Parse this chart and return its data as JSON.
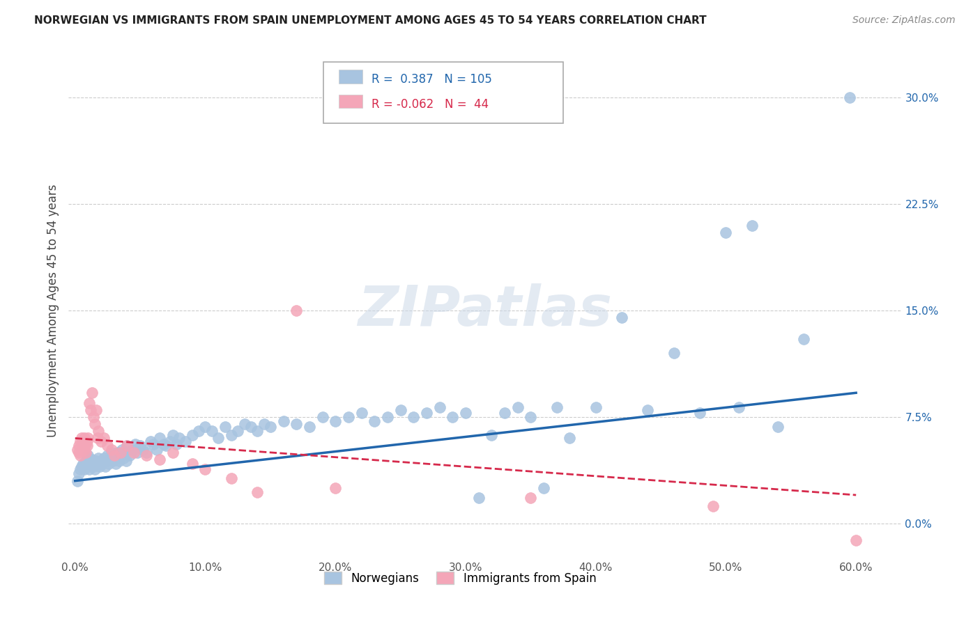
{
  "title": "NORWEGIAN VS IMMIGRANTS FROM SPAIN UNEMPLOYMENT AMONG AGES 45 TO 54 YEARS CORRELATION CHART",
  "source": "Source: ZipAtlas.com",
  "ylabel": "Unemployment Among Ages 45 to 54 years",
  "xlabel_ticks": [
    "0.0%",
    "10.0%",
    "20.0%",
    "30.0%",
    "40.0%",
    "50.0%",
    "60.0%"
  ],
  "xlabel_vals": [
    0.0,
    0.1,
    0.2,
    0.3,
    0.4,
    0.5,
    0.6
  ],
  "ylabel_ticks": [
    "0.0%",
    "7.5%",
    "15.0%",
    "22.5%",
    "30.0%"
  ],
  "ylabel_vals": [
    0.0,
    0.075,
    0.15,
    0.225,
    0.3
  ],
  "xlim": [
    -0.005,
    0.635
  ],
  "ylim": [
    -0.025,
    0.325
  ],
  "r_norwegian": 0.387,
  "n_norwegian": 105,
  "r_spain": -0.062,
  "n_spain": 44,
  "norwegian_color": "#a8c4e0",
  "norway_line_color": "#2166ac",
  "spain_color": "#f4a6b8",
  "spain_line_color": "#d6294b",
  "legend_labels": [
    "Norwegians",
    "Immigrants from Spain"
  ],
  "norwegian_x": [
    0.002,
    0.003,
    0.004,
    0.005,
    0.006,
    0.007,
    0.008,
    0.009,
    0.01,
    0.01,
    0.011,
    0.012,
    0.013,
    0.014,
    0.015,
    0.016,
    0.017,
    0.018,
    0.019,
    0.02,
    0.021,
    0.022,
    0.023,
    0.024,
    0.025,
    0.026,
    0.027,
    0.028,
    0.029,
    0.03,
    0.031,
    0.032,
    0.033,
    0.034,
    0.035,
    0.036,
    0.037,
    0.038,
    0.039,
    0.04,
    0.042,
    0.044,
    0.046,
    0.048,
    0.05,
    0.052,
    0.055,
    0.058,
    0.06,
    0.063,
    0.065,
    0.068,
    0.07,
    0.073,
    0.075,
    0.078,
    0.08,
    0.085,
    0.09,
    0.095,
    0.1,
    0.105,
    0.11,
    0.115,
    0.12,
    0.125,
    0.13,
    0.135,
    0.14,
    0.145,
    0.15,
    0.16,
    0.17,
    0.18,
    0.19,
    0.2,
    0.21,
    0.22,
    0.23,
    0.24,
    0.25,
    0.26,
    0.27,
    0.28,
    0.29,
    0.3,
    0.31,
    0.32,
    0.33,
    0.34,
    0.35,
    0.36,
    0.37,
    0.38,
    0.4,
    0.42,
    0.44,
    0.46,
    0.48,
    0.5,
    0.51,
    0.52,
    0.54,
    0.56,
    0.595
  ],
  "norwegian_y": [
    0.03,
    0.035,
    0.038,
    0.04,
    0.042,
    0.038,
    0.044,
    0.046,
    0.042,
    0.048,
    0.038,
    0.042,
    0.045,
    0.04,
    0.038,
    0.044,
    0.042,
    0.046,
    0.04,
    0.044,
    0.042,
    0.046,
    0.04,
    0.044,
    0.048,
    0.042,
    0.046,
    0.05,
    0.044,
    0.048,
    0.042,
    0.046,
    0.05,
    0.044,
    0.048,
    0.052,
    0.046,
    0.05,
    0.044,
    0.055,
    0.048,
    0.052,
    0.056,
    0.05,
    0.055,
    0.052,
    0.05,
    0.058,
    0.056,
    0.052,
    0.06,
    0.056,
    0.055,
    0.058,
    0.062,
    0.056,
    0.06,
    0.058,
    0.062,
    0.065,
    0.068,
    0.065,
    0.06,
    0.068,
    0.062,
    0.065,
    0.07,
    0.068,
    0.065,
    0.07,
    0.068,
    0.072,
    0.07,
    0.068,
    0.075,
    0.072,
    0.075,
    0.078,
    0.072,
    0.075,
    0.08,
    0.075,
    0.078,
    0.082,
    0.075,
    0.078,
    0.018,
    0.062,
    0.078,
    0.082,
    0.075,
    0.025,
    0.082,
    0.06,
    0.082,
    0.145,
    0.08,
    0.12,
    0.078,
    0.205,
    0.082,
    0.21,
    0.068,
    0.13,
    0.3
  ],
  "spain_x": [
    0.002,
    0.003,
    0.003,
    0.004,
    0.004,
    0.005,
    0.005,
    0.006,
    0.006,
    0.007,
    0.007,
    0.008,
    0.008,
    0.009,
    0.009,
    0.01,
    0.011,
    0.012,
    0.013,
    0.014,
    0.015,
    0.016,
    0.017,
    0.018,
    0.02,
    0.022,
    0.025,
    0.028,
    0.03,
    0.035,
    0.04,
    0.045,
    0.055,
    0.065,
    0.075,
    0.09,
    0.1,
    0.12,
    0.14,
    0.17,
    0.2,
    0.35,
    0.49,
    0.6
  ],
  "spain_y": [
    0.052,
    0.055,
    0.05,
    0.058,
    0.048,
    0.06,
    0.052,
    0.058,
    0.054,
    0.06,
    0.052,
    0.056,
    0.05,
    0.055,
    0.058,
    0.06,
    0.085,
    0.08,
    0.092,
    0.075,
    0.07,
    0.08,
    0.06,
    0.065,
    0.058,
    0.06,
    0.055,
    0.052,
    0.048,
    0.05,
    0.055,
    0.05,
    0.048,
    0.045,
    0.05,
    0.042,
    0.038,
    0.032,
    0.022,
    0.15,
    0.025,
    0.018,
    0.012,
    -0.012
  ],
  "nor_trend_x": [
    0.0,
    0.6
  ],
  "nor_trend_y": [
    0.03,
    0.092
  ],
  "spa_trend_x": [
    0.0,
    0.6
  ],
  "spa_trend_y": [
    0.06,
    0.02
  ]
}
